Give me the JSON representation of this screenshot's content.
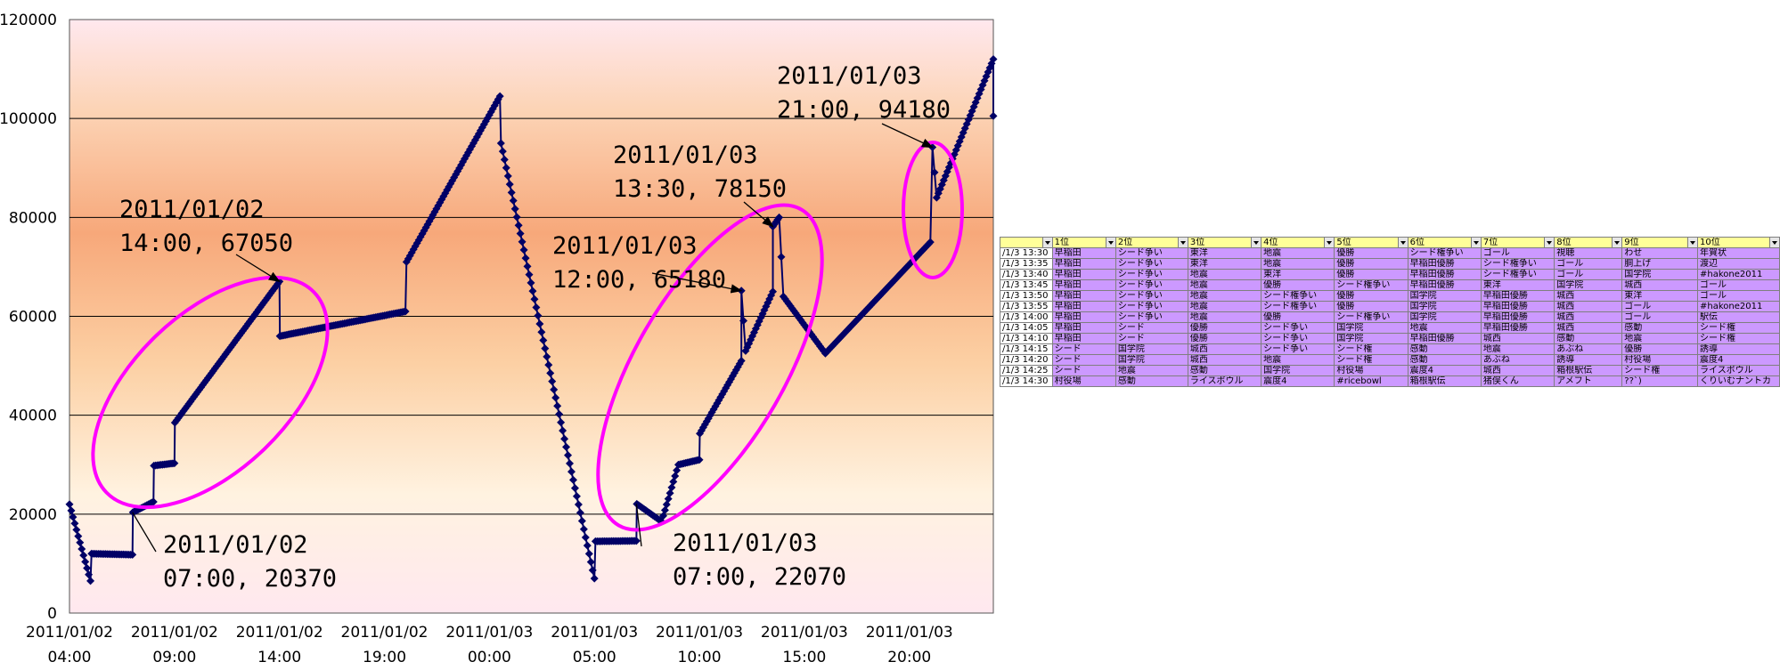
{
  "chart_data": {
    "type": "line",
    "title": "",
    "xlabel": "",
    "ylabel": "",
    "ylim": [
      0,
      120000
    ],
    "y_ticks": [
      "0",
      "20000",
      "40000",
      "60000",
      "80000",
      "100000",
      "120000"
    ],
    "x_ticks": [
      {
        "l1": "2011/01/02",
        "l2": "04:00"
      },
      {
        "l1": "2011/01/02",
        "l2": "09:00"
      },
      {
        "l1": "2011/01/02",
        "l2": "14:00"
      },
      {
        "l1": "2011/01/02",
        "l2": "19:00"
      },
      {
        "l1": "2011/01/03",
        "l2": "00:00"
      },
      {
        "l1": "2011/01/03",
        "l2": "05:00"
      },
      {
        "l1": "2011/01/03",
        "l2": "10:00"
      },
      {
        "l1": "2011/01/03",
        "l2": "15:00"
      },
      {
        "l1": "2011/01/03",
        "l2": "20:00"
      }
    ],
    "x_range_hours": [
      0,
      44
    ],
    "grid": true,
    "marker": "diamond",
    "line_color": "#000066",
    "highlight_color": "#ff00ff",
    "series": [
      {
        "name": "",
        "points": [
          [
            0,
            22000
          ],
          [
            1,
            6500
          ],
          [
            1.05,
            12000
          ],
          [
            3,
            11800
          ],
          [
            3.02,
            20370
          ],
          [
            4,
            22500
          ],
          [
            4.02,
            29800
          ],
          [
            5,
            30300
          ],
          [
            5.02,
            38500
          ],
          [
            10,
            67050
          ],
          [
            10.02,
            56000
          ],
          [
            16,
            61000
          ],
          [
            16.05,
            71000
          ],
          [
            20.5,
            104500
          ],
          [
            20.55,
            95000
          ],
          [
            25,
            7000
          ],
          [
            25.05,
            14500
          ],
          [
            27,
            14600
          ],
          [
            27.02,
            22070
          ],
          [
            28.2,
            18500
          ],
          [
            29,
            30000
          ],
          [
            30,
            31000
          ],
          [
            30.02,
            36300
          ],
          [
            32,
            51000
          ],
          [
            32,
            65180
          ],
          [
            32.2,
            53000
          ],
          [
            33.5,
            65000
          ],
          [
            33.5,
            78150
          ],
          [
            33.8,
            80000
          ],
          [
            34,
            64000
          ],
          [
            36,
            52500
          ],
          [
            41,
            75000
          ],
          [
            41.1,
            94180
          ],
          [
            41.3,
            84000
          ],
          [
            44,
            112000
          ],
          [
            44,
            100500
          ]
        ]
      }
    ],
    "annotations": [
      {
        "line1": "2011/01/02",
        "line2": "07:00, 20370",
        "x": 3,
        "y": 20370
      },
      {
        "line1": "2011/01/02",
        "line2": "14:00, 67050",
        "x": 10,
        "y": 67050
      },
      {
        "line1": "2011/01/03",
        "line2": "07:00, 22070",
        "x": 27,
        "y": 22070
      },
      {
        "line1": "2011/01/03",
        "line2": "12:00, 65180",
        "x": 32,
        "y": 65180
      },
      {
        "line1": "2011/01/03",
        "line2": "13:30, 78150",
        "x": 33.5,
        "y": 78150
      },
      {
        "line1": "2011/01/03",
        "line2": "21:00, 94180",
        "x": 41.1,
        "y": 94180
      }
    ]
  },
  "rank_table": {
    "first_header": "",
    "headers": [
      "1位",
      "2位",
      "3位",
      "4位",
      "5位",
      "6位",
      "7位",
      "8位",
      "9位",
      "10位"
    ],
    "rows": [
      {
        "time": "/1/3 13:30",
        "cells": [
          "早稲田",
          "シード争い",
          "東洋",
          "地震",
          "優勝",
          "シード権争い",
          "ゴール",
          "視聴",
          "わせ",
          "年賀状"
        ]
      },
      {
        "time": "/1/3 13:35",
        "cells": [
          "早稲田",
          "シード争い",
          "東洋",
          "地震",
          "優勝",
          "早稲田優勝",
          "シード権争い",
          "ゴール",
          "胴上げ",
          "渡辺"
        ]
      },
      {
        "time": "/1/3 13:40",
        "cells": [
          "早稲田",
          "シード争い",
          "地震",
          "東洋",
          "優勝",
          "早稲田優勝",
          "シード権争い",
          "ゴール",
          "国学院",
          "#hakone2011"
        ]
      },
      {
        "time": "/1/3 13:45",
        "cells": [
          "早稲田",
          "シード争い",
          "地震",
          "優勝",
          "シード権争い",
          "早稲田優勝",
          "東洋",
          "国学院",
          "城西",
          "ゴール"
        ]
      },
      {
        "time": "/1/3 13:50",
        "cells": [
          "早稲田",
          "シード争い",
          "地震",
          "シード権争い",
          "優勝",
          "国学院",
          "早稲田優勝",
          "城西",
          "東洋",
          "ゴール"
        ]
      },
      {
        "time": "/1/3 13:55",
        "cells": [
          "早稲田",
          "シード争い",
          "地震",
          "シード権争い",
          "優勝",
          "国学院",
          "早稲田優勝",
          "城西",
          "ゴール",
          "#hakone2011"
        ]
      },
      {
        "time": "/1/3 14:00",
        "cells": [
          "早稲田",
          "シード争い",
          "地震",
          "優勝",
          "シード権争い",
          "国学院",
          "早稲田優勝",
          "城西",
          "ゴール",
          "駅伝"
        ]
      },
      {
        "time": "/1/3 14:05",
        "cells": [
          "早稲田",
          "シード",
          "優勝",
          "シード争い",
          "国学院",
          "地震",
          "早稲田優勝",
          "城西",
          "感動",
          "シード権"
        ]
      },
      {
        "time": "/1/3 14:10",
        "cells": [
          "早稲田",
          "シード",
          "優勝",
          "シード争い",
          "国学院",
          "早稲田優勝",
          "城西",
          "感動",
          "地震",
          "シード権"
        ]
      },
      {
        "time": "/1/3 14:15",
        "cells": [
          "シード",
          "国学院",
          "城西",
          "シード争い",
          "シード権",
          "感動",
          "地震",
          "あぶね",
          "優勝",
          "誘導"
        ]
      },
      {
        "time": "/1/3 14:20",
        "cells": [
          "シード",
          "国学院",
          "城西",
          "地震",
          "シード権",
          "感動",
          "あぶね",
          "誘導",
          "村役場",
          "震度4"
        ]
      },
      {
        "time": "/1/3 14:25",
        "cells": [
          "シード",
          "地震",
          "感動",
          "国学院",
          "村役場",
          "震度4",
          "城西",
          "箱根駅伝",
          "シード権",
          "ライスボウル"
        ]
      },
      {
        "time": "/1/3 14:30",
        "cells": [
          "村役場",
          "感動",
          "ライスボウル",
          "震度4",
          "#ricebowl",
          "箱根駅伝",
          "猪俣くん",
          "アメフト",
          "??`)",
          "くりいむナントカ"
        ]
      }
    ]
  }
}
